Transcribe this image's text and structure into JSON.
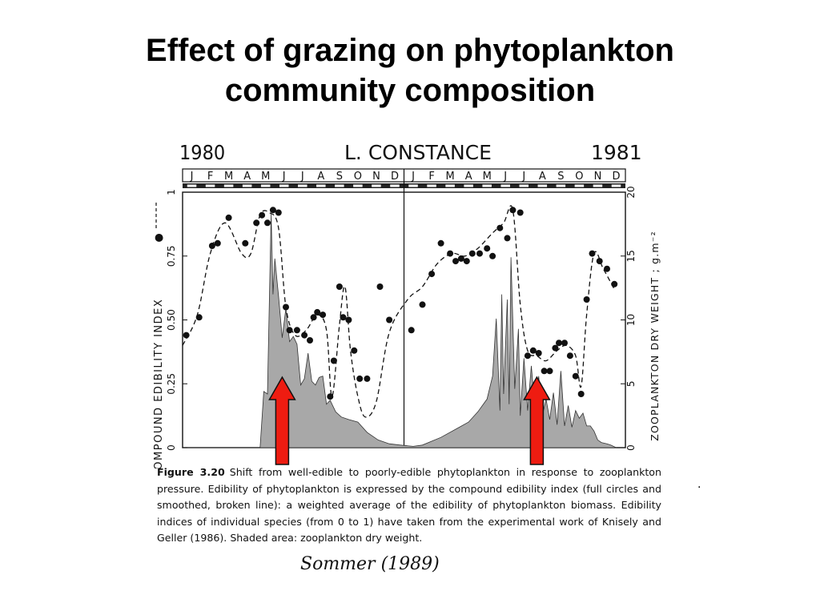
{
  "slide": {
    "title_line1": "Effect of grazing on phytoplankton",
    "title_line2": "community composition",
    "stray_mark": "."
  },
  "colors": {
    "arrow_fill": "#ee1c11",
    "arrow_stroke": "#111111",
    "shade_fill": "#a8a8a8",
    "ink": "#111111"
  },
  "chart_data": {
    "type": "line",
    "title": "L. CONSTANCE",
    "year_left": "1980",
    "year_right": "1981",
    "months": [
      "J",
      "F",
      "M",
      "A",
      "M",
      "J",
      "J",
      "A",
      "S",
      "O",
      "N",
      "D",
      "J",
      "F",
      "M",
      "A",
      "M",
      "J",
      "J",
      "A",
      "S",
      "O",
      "N",
      "D"
    ],
    "y_left_label": "COMPOUND EDIBILITY INDEX",
    "y_left_symbol": "●",
    "y_left_ticks": [
      "0",
      "0.25",
      "0.50",
      "0.75",
      "1"
    ],
    "y_left_lim": [
      0,
      1
    ],
    "y_right_label": "ZOOPLANKTON DRY WEIGHT ; g.m⁻²",
    "y_right_ticks": [
      "0",
      "5",
      "10",
      "15",
      "20"
    ],
    "y_right_lim": [
      0,
      20
    ],
    "x_unit": "months since start of 1980",
    "x_lim": [
      0,
      24
    ],
    "series": [
      {
        "name": "Compound edibility index",
        "style": "dots + dashed smoothed line",
        "x": [
          0.2,
          0.9,
          1.6,
          1.9,
          2.5,
          3.4,
          4.0,
          4.3,
          4.6,
          4.9,
          5.2,
          5.6,
          5.8,
          6.2,
          6.6,
          6.9,
          7.1,
          7.3,
          7.6,
          8.0,
          8.2,
          8.5,
          8.7,
          9.0,
          9.3,
          9.6,
          10.0,
          10.7,
          11.2,
          12.4,
          13.0,
          13.5,
          14.0,
          14.5,
          14.8,
          15.1,
          15.4,
          15.7,
          16.1,
          16.5,
          16.8,
          17.2,
          17.6,
          17.9,
          18.3,
          18.7,
          19.0,
          19.3,
          19.6,
          19.9,
          20.2,
          20.4,
          20.7,
          21.0,
          21.3,
          21.6,
          21.9,
          22.2,
          22.6,
          23.0,
          23.4
        ],
        "y": [
          0.44,
          0.51,
          0.79,
          0.8,
          0.9,
          0.8,
          0.88,
          0.91,
          0.88,
          0.93,
          0.92,
          0.55,
          0.46,
          0.46,
          0.44,
          0.42,
          0.51,
          0.53,
          0.52,
          0.2,
          0.34,
          0.63,
          0.51,
          0.5,
          0.38,
          0.27,
          0.27,
          0.63,
          0.5,
          0.46,
          0.56,
          0.68,
          0.8,
          0.76,
          0.73,
          0.74,
          0.73,
          0.76,
          0.76,
          0.78,
          0.75,
          0.86,
          0.82,
          0.93,
          0.92,
          0.36,
          0.38,
          0.37,
          0.3,
          0.3,
          0.39,
          0.41,
          0.41,
          0.36,
          0.28,
          0.21,
          0.58,
          0.76,
          0.73,
          0.7,
          0.64
        ],
        "smoothed_x": [
          0.0,
          0.8,
          1.5,
          2.3,
          3.2,
          3.7,
          4.2,
          4.7,
          5.2,
          5.6,
          6.1,
          6.7,
          7.3,
          7.8,
          8.1,
          8.5,
          8.8,
          9.1,
          9.5,
          9.9,
          10.5,
          11.2,
          12.2,
          13.0,
          13.8,
          14.6,
          15.3,
          16.0,
          16.8,
          17.4,
          17.9,
          18.3,
          18.7,
          19.2,
          19.7,
          20.3,
          20.8,
          21.3,
          21.6,
          21.9,
          22.3,
          22.8,
          23.4
        ],
        "smoothed_y": [
          0.4,
          0.52,
          0.76,
          0.88,
          0.76,
          0.76,
          0.91,
          0.92,
          0.86,
          0.55,
          0.44,
          0.46,
          0.52,
          0.46,
          0.2,
          0.48,
          0.63,
          0.38,
          0.2,
          0.12,
          0.18,
          0.45,
          0.58,
          0.63,
          0.72,
          0.76,
          0.75,
          0.78,
          0.84,
          0.88,
          0.93,
          0.56,
          0.38,
          0.36,
          0.34,
          0.38,
          0.4,
          0.36,
          0.24,
          0.52,
          0.76,
          0.7,
          0.62
        ]
      },
      {
        "name": "Zooplankton dry weight",
        "style": "shaded area",
        "x": [
          0.0,
          4.2,
          4.4,
          4.6,
          4.8,
          4.9,
          5.0,
          5.2,
          5.4,
          5.6,
          5.8,
          6.0,
          6.2,
          6.4,
          6.6,
          6.8,
          7.0,
          7.2,
          7.4,
          7.6,
          7.8,
          8.0,
          8.3,
          8.6,
          9.0,
          9.5,
          10.0,
          10.6,
          11.2,
          11.8,
          12.5,
          13.0,
          14.0,
          15.0,
          15.5,
          16.0,
          16.5,
          16.8,
          17.0,
          17.2,
          17.3,
          17.4,
          17.6,
          17.7,
          17.8,
          18.0,
          18.2,
          18.3,
          18.5,
          18.7,
          18.9,
          19.1,
          19.3,
          19.5,
          19.7,
          19.9,
          20.1,
          20.3,
          20.5,
          20.7,
          20.9,
          21.1,
          21.3,
          21.5,
          21.7,
          21.9,
          22.1,
          22.3,
          22.5,
          22.7,
          23.0,
          23.2,
          23.5
        ],
        "y": [
          0,
          0,
          4.4,
          4.2,
          18.3,
          12.0,
          14.8,
          11.9,
          8.6,
          10.9,
          8.3,
          8.7,
          8.1,
          4.9,
          5.4,
          7.4,
          5.2,
          4.9,
          5.5,
          5.6,
          3.4,
          3.7,
          2.8,
          2.4,
          2.2,
          2.0,
          1.2,
          0.6,
          0.3,
          0.2,
          0.1,
          0.2,
          0.8,
          1.6,
          2.0,
          2.8,
          3.8,
          5.6,
          10.1,
          2.9,
          12.0,
          4.2,
          11.6,
          3.4,
          14.9,
          4.6,
          9.3,
          2.5,
          7.0,
          2.9,
          6.4,
          3.0,
          5.6,
          2.5,
          3.8,
          2.2,
          4.3,
          1.8,
          6.0,
          1.7,
          3.3,
          1.6,
          2.9,
          2.3,
          2.7,
          1.7,
          1.7,
          1.3,
          0.6,
          0.4,
          0.3,
          0.2,
          0
        ]
      }
    ],
    "annotations": [
      {
        "type": "arrow",
        "direction": "up",
        "x": 5.4,
        "color": "red"
      },
      {
        "type": "arrow",
        "direction": "up",
        "x": 19.2,
        "color": "red"
      }
    ],
    "grid": false,
    "legend": "none"
  },
  "caption": {
    "label": "Figure 3.20",
    "text": "Shift from well-edible to poorly-edible phytoplankton in response to zooplankton pressure. Edibility of phytoplankton is expressed by the compound edibility index (full circles and smoothed, broken line): a weighted average of the edibility of phytoplankton biomass. Edibility indices of individual species (from 0 to 1) have taken from the experimental work of Knisely and Geller (1986). Shaded area: zooplankton dry weight."
  },
  "signature": "Sommer (1989)"
}
